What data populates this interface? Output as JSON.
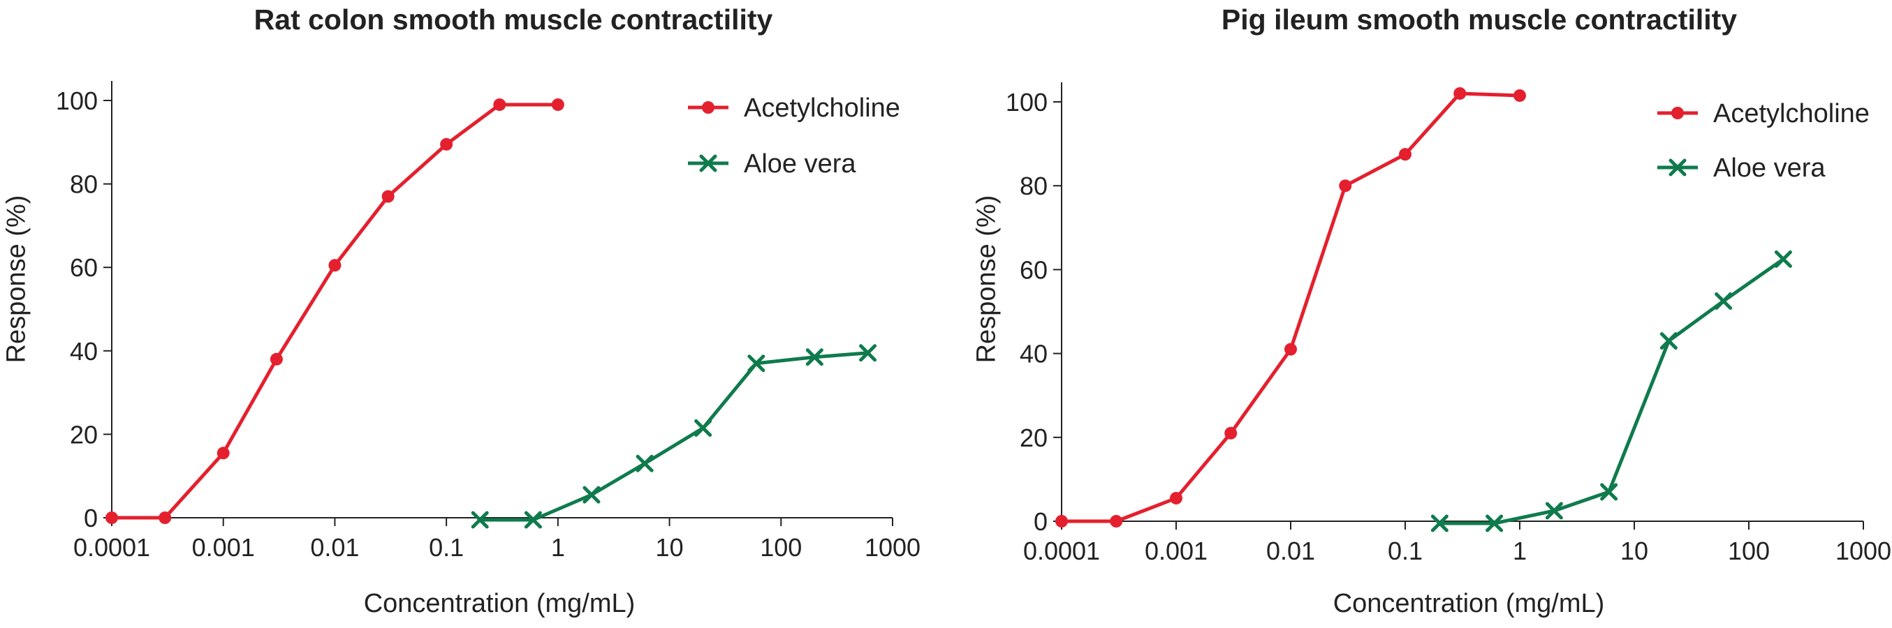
{
  "chart_data": [
    {
      "type": "line",
      "title": "Rat colon smooth muscle contractility",
      "xlabel": "Concentration (mg/mL)",
      "ylabel": "Response (%)",
      "xscale": "log",
      "xlim": [
        0.0001,
        1000
      ],
      "ylim": [
        0,
        100
      ],
      "xticks": [
        "0.0001",
        "0.001",
        "0.01",
        "0.1",
        "1",
        "10",
        "100",
        "1000"
      ],
      "yticks": [
        "0",
        "20",
        "40",
        "60",
        "80",
        "100"
      ],
      "grid": false,
      "legend": "top-right",
      "series": [
        {
          "name": "Acetylcholine",
          "color": "#e4202e",
          "marker": "circle",
          "x": [
            0.0001,
            0.0003,
            0.001,
            0.003,
            0.01,
            0.03,
            0.1,
            0.3,
            1
          ],
          "y": [
            0,
            0,
            15.5,
            38,
            60.5,
            77,
            89.5,
            99,
            99
          ]
        },
        {
          "name": "Aloe vera",
          "color": "#0f7b4c",
          "marker": "x",
          "x": [
            0.2,
            0.6,
            2,
            6,
            20,
            60,
            200,
            600
          ],
          "y": [
            -0.5,
            -0.5,
            5.5,
            13,
            21.5,
            37,
            38.5,
            39.5
          ]
        }
      ]
    },
    {
      "type": "line",
      "title": "Pig ileum smooth muscle contractility",
      "xlabel": "Concentration (mg/mL)",
      "ylabel": "Response (%)",
      "xscale": "log",
      "xlim": [
        0.0001,
        1000
      ],
      "ylim": [
        0,
        100
      ],
      "xticks": [
        "0.0001",
        "0.001",
        "0.01",
        "0.1",
        "1",
        "10",
        "100",
        "1000"
      ],
      "yticks": [
        "0",
        "20",
        "40",
        "60",
        "80",
        "100"
      ],
      "grid": false,
      "legend": "top-right",
      "series": [
        {
          "name": "Acetylcholine",
          "color": "#e4202e",
          "marker": "circle",
          "x": [
            0.0001,
            0.0003,
            0.001,
            0.003,
            0.01,
            0.03,
            0.1,
            0.3,
            1
          ],
          "y": [
            0,
            0,
            5.5,
            21,
            41,
            80,
            87.5,
            102,
            101.5
          ]
        },
        {
          "name": "Aloe vera",
          "color": "#0f7b4c",
          "marker": "x",
          "x": [
            0.2,
            0.6,
            2,
            6,
            20,
            60,
            200
          ],
          "y": [
            -0.5,
            -0.5,
            2.5,
            7,
            43,
            52.5,
            62.5
          ]
        }
      ]
    }
  ]
}
